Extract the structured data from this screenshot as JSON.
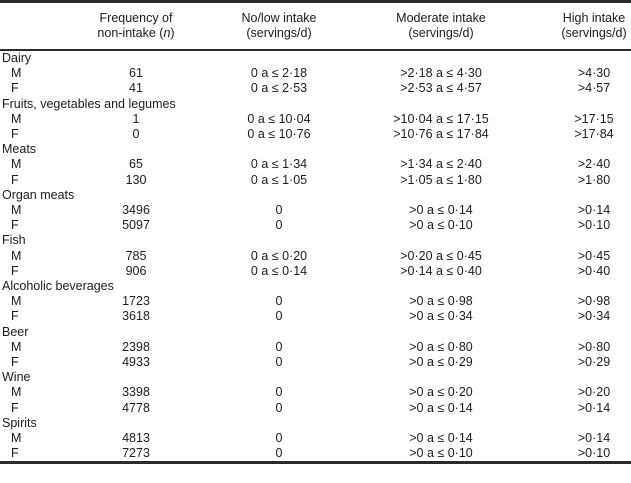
{
  "page": {
    "background": "#ffffff",
    "text_color": "#1c1c1c",
    "rule_color": "#2b2b2b"
  },
  "header": {
    "frequency": {
      "line1": "Frequency of",
      "line2_prefix": "non-intake (",
      "line2_italic": "n",
      "line2_suffix": ")"
    },
    "no_low": {
      "line1": "No/low intake",
      "line2": "(servings/d)"
    },
    "moderate": {
      "line1": "Moderate intake",
      "line2": "(servings/d)"
    },
    "high": {
      "line1": "High intake",
      "line2": "(servings/d)"
    }
  },
  "groups": [
    {
      "category": "Dairy",
      "rows": [
        {
          "sex": "M",
          "frequency": "61",
          "no_low": "0 a ≤ 2·18",
          "moderate": ">2·18 a ≤ 4·30",
          "high": ">4·30"
        },
        {
          "sex": "F",
          "frequency": "41",
          "no_low": "0 a ≤ 2·53",
          "moderate": ">2·53 a ≤ 4·57",
          "high": ">4·57"
        }
      ]
    },
    {
      "category": "Fruits, vegetables and legumes",
      "rows": [
        {
          "sex": "M",
          "frequency": "1",
          "no_low": "0 a ≤ 10·04",
          "moderate": ">10·04 a ≤ 17·15",
          "high": ">17·15"
        },
        {
          "sex": "F",
          "frequency": "0",
          "no_low": "0 a ≤ 10·76",
          "moderate": ">10·76 a ≤ 17·84",
          "high": ">17·84"
        }
      ]
    },
    {
      "category": "Meats",
      "rows": [
        {
          "sex": "M",
          "frequency": "65",
          "no_low": "0 a ≤ 1·34",
          "moderate": ">1·34 a ≤ 2·40",
          "high": ">2·40"
        },
        {
          "sex": "F",
          "frequency": "130",
          "no_low": "0 a ≤ 1·05",
          "moderate": ">1·05 a ≤ 1·80",
          "high": ">1·80"
        }
      ]
    },
    {
      "category": "Organ meats",
      "rows": [
        {
          "sex": "M",
          "frequency": "3496",
          "no_low": "0",
          "moderate": ">0 a ≤ 0·14",
          "high": ">0·14"
        },
        {
          "sex": "F",
          "frequency": "5097",
          "no_low": "0",
          "moderate": ">0 a ≤ 0·10",
          "high": ">0·10"
        }
      ]
    },
    {
      "category": "Fish",
      "rows": [
        {
          "sex": "M",
          "frequency": "785",
          "no_low": "0 a ≤ 0·20",
          "moderate": ">0·20 a ≤ 0·45",
          "high": ">0·45"
        },
        {
          "sex": "F",
          "frequency": "906",
          "no_low": "0 a ≤ 0·14",
          "moderate": ">0·14 a ≤ 0·40",
          "high": ">0·40"
        }
      ]
    },
    {
      "category": "Alcoholic beverages",
      "rows": [
        {
          "sex": "M",
          "frequency": "1723",
          "no_low": "0",
          "moderate": ">0 a ≤ 0·98",
          "high": ">0·98"
        },
        {
          "sex": "F",
          "frequency": "3618",
          "no_low": "0",
          "moderate": ">0 a ≤ 0·34",
          "high": ">0·34"
        }
      ]
    },
    {
      "category": "Beer",
      "rows": [
        {
          "sex": "M",
          "frequency": "2398",
          "no_low": "0",
          "moderate": ">0 a ≤ 0·80",
          "high": ">0·80"
        },
        {
          "sex": "F",
          "frequency": "4933",
          "no_low": "0",
          "moderate": ">0 a ≤ 0·29",
          "high": ">0·29"
        }
      ]
    },
    {
      "category": "Wine",
      "rows": [
        {
          "sex": "M",
          "frequency": "3398",
          "no_low": "0",
          "moderate": ">0 a ≤ 0·20",
          "high": ">0·20"
        },
        {
          "sex": "F",
          "frequency": "4778",
          "no_low": "0",
          "moderate": ">0 a ≤ 0·14",
          "high": ">0·14"
        }
      ]
    },
    {
      "category": "Spirits",
      "rows": [
        {
          "sex": "M",
          "frequency": "4813",
          "no_low": "0",
          "moderate": ">0 a ≤ 0·14",
          "high": ">0·14"
        },
        {
          "sex": "F",
          "frequency": "7273",
          "no_low": "0",
          "moderate": ">0 a ≤ 0·10",
          "high": ">0·10"
        }
      ]
    }
  ]
}
